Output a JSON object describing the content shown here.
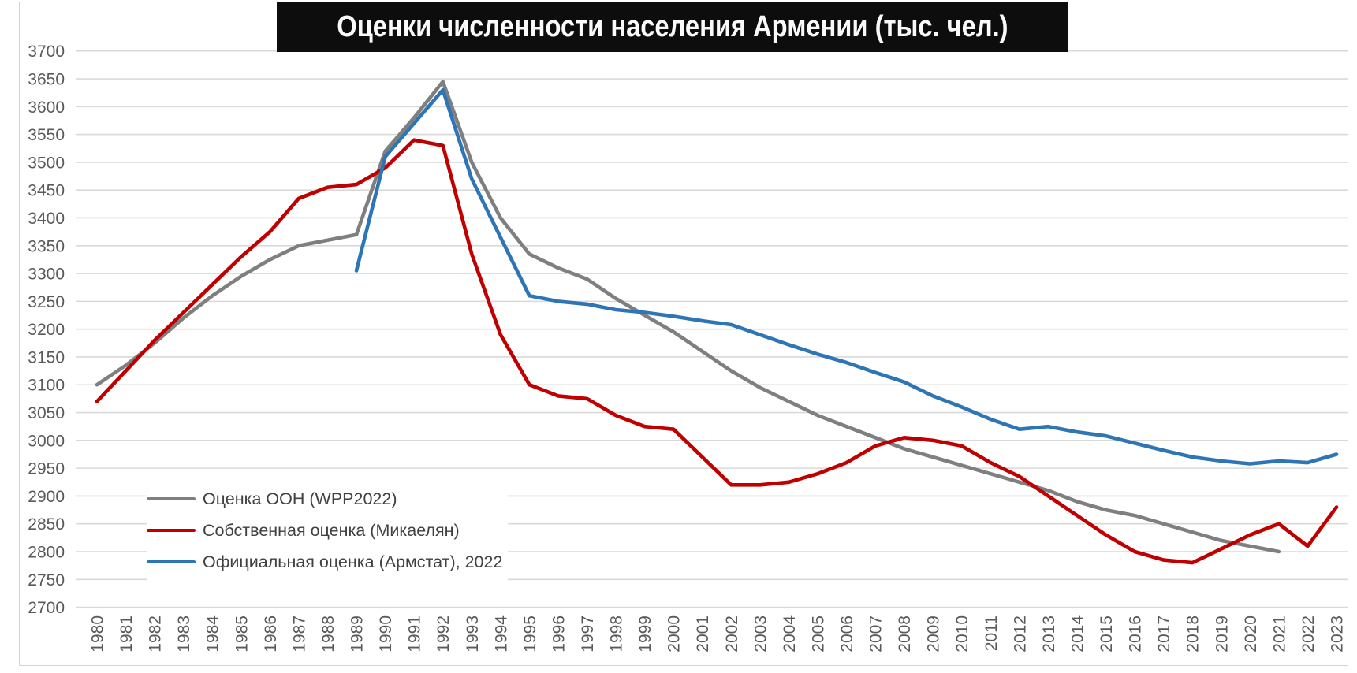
{
  "title": "Оценки численности населения Армении (тыс. чел.)",
  "colors": {
    "un_series": "#7f7f7f",
    "own_series": "#c00000",
    "official_series": "#2e75b6",
    "grid": "#d9d9d9",
    "axis_labels": "#595959",
    "legend_text": "#404040",
    "title_bg": "#0d0d0d",
    "title_text": "#fafafa"
  },
  "chart_data": {
    "type": "line",
    "title": "Оценки численности населения Армении (тыс. чел.)",
    "xlabel": "",
    "ylabel": "",
    "grid": true,
    "legend_position": "inside-left-bottom",
    "ylim": [
      2700,
      3700
    ],
    "y_ticks": [
      2700,
      2750,
      2800,
      2850,
      2900,
      2950,
      3000,
      3050,
      3100,
      3150,
      3200,
      3250,
      3300,
      3350,
      3400,
      3450,
      3500,
      3550,
      3600,
      3650,
      3700
    ],
    "x_labels": [
      "1980",
      "1981",
      "1982",
      "1983",
      "1984",
      "1985",
      "1986",
      "1987",
      "1988",
      "1989",
      "1990",
      "1991",
      "1992",
      "1993",
      "1994",
      "1995",
      "1996",
      "1997",
      "1998",
      "1999",
      "2000",
      "2001",
      "2002",
      "2003",
      "2004",
      "2005",
      "2006",
      "2007",
      "2008",
      "2009",
      "2010",
      "2011",
      "2012",
      "2013",
      "2014",
      "2015",
      "2016",
      "2017",
      "2018",
      "2019",
      "2020",
      "2021",
      "2022",
      "2023"
    ],
    "series": [
      {
        "name": "Оценка ООН (WPP2022)",
        "color": "#7f7f7f",
        "start_year": 1980,
        "values": [
          3100,
          3135,
          3175,
          3220,
          3260,
          3295,
          3325,
          3350,
          3360,
          3370,
          3520,
          3580,
          3645,
          3500,
          3400,
          3335,
          3310,
          3290,
          3255,
          3225,
          3195,
          3160,
          3125,
          3095,
          3070,
          3045,
          3025,
          3005,
          2985,
          2970,
          2955,
          2940,
          2925,
          2910,
          2890,
          2875,
          2865,
          2850,
          2835,
          2820,
          2810,
          2800
        ]
      },
      {
        "name": "Собственная оценка (Микаелян)",
        "color": "#c00000",
        "start_year": 1980,
        "values": [
          3070,
          3125,
          3180,
          3230,
          3280,
          3330,
          3375,
          3435,
          3455,
          3460,
          3490,
          3540,
          3530,
          3335,
          3190,
          3100,
          3080,
          3075,
          3045,
          3025,
          3020,
          2970,
          2920,
          2920,
          2925,
          2940,
          2960,
          2990,
          3005,
          3000,
          2990,
          2960,
          2935,
          2900,
          2865,
          2830,
          2800,
          2785,
          2780,
          2805,
          2830,
          2850,
          2810,
          2880
        ]
      },
      {
        "name": "Официальная оценка (Армстат), 2022",
        "color": "#2e75b6",
        "start_year": 1989,
        "values": [
          3305,
          3510,
          3570,
          3630,
          3470,
          3365,
          3260,
          3250,
          3245,
          3235,
          3230,
          3223,
          3215,
          3208,
          3190,
          3172,
          3155,
          3140,
          3122,
          3105,
          3080,
          3060,
          3038,
          3020,
          3025,
          3015,
          3008,
          2995,
          2982,
          2970,
          2963,
          2958,
          2963,
          2960,
          2975
        ]
      }
    ]
  }
}
